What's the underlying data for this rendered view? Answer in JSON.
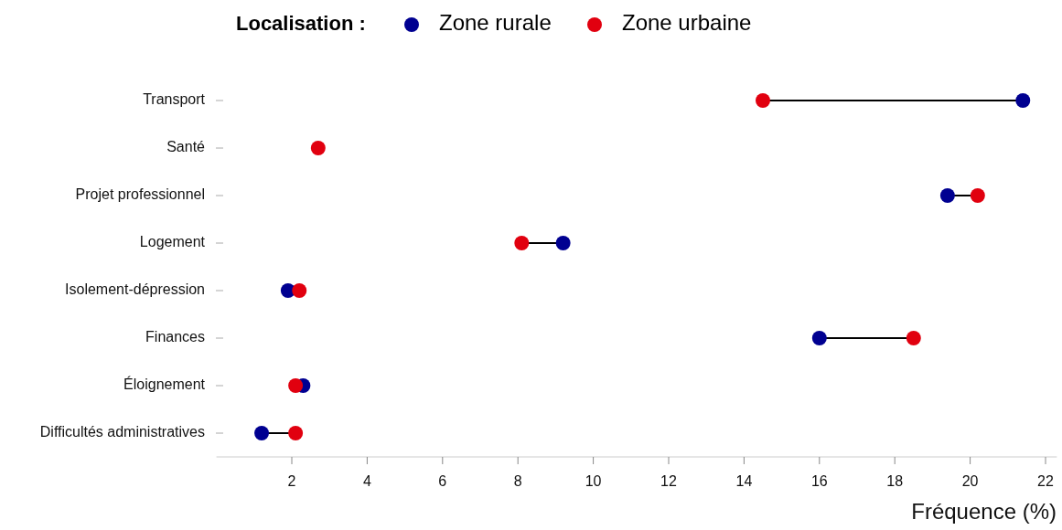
{
  "chart_data": {
    "type": "scatter",
    "orientation": "horizontal",
    "legend_title": "Localisation :",
    "legend": "top",
    "xlabel": "Fréquence (%)",
    "categories": [
      "Transport",
      "Santé",
      "Projet professionnel",
      "Logement",
      "Isolement-dépression",
      "Finances",
      "Éloignement",
      "Difficultés administratives"
    ],
    "xlim": [
      0,
      22.3
    ],
    "xticks": [
      2,
      4,
      6,
      8,
      10,
      12,
      14,
      16,
      18,
      20,
      22
    ],
    "marker": "circle",
    "grid": false,
    "series": [
      {
        "name": "Zone rurale",
        "color": "#000091",
        "values": [
          21.4,
          null,
          19.4,
          9.2,
          1.9,
          16.0,
          2.3,
          1.2
        ]
      },
      {
        "name": "Zone urbaine",
        "color": "#e1000f",
        "values": [
          14.5,
          2.7,
          20.2,
          8.1,
          2.2,
          18.5,
          2.1,
          2.1
        ]
      }
    ]
  }
}
